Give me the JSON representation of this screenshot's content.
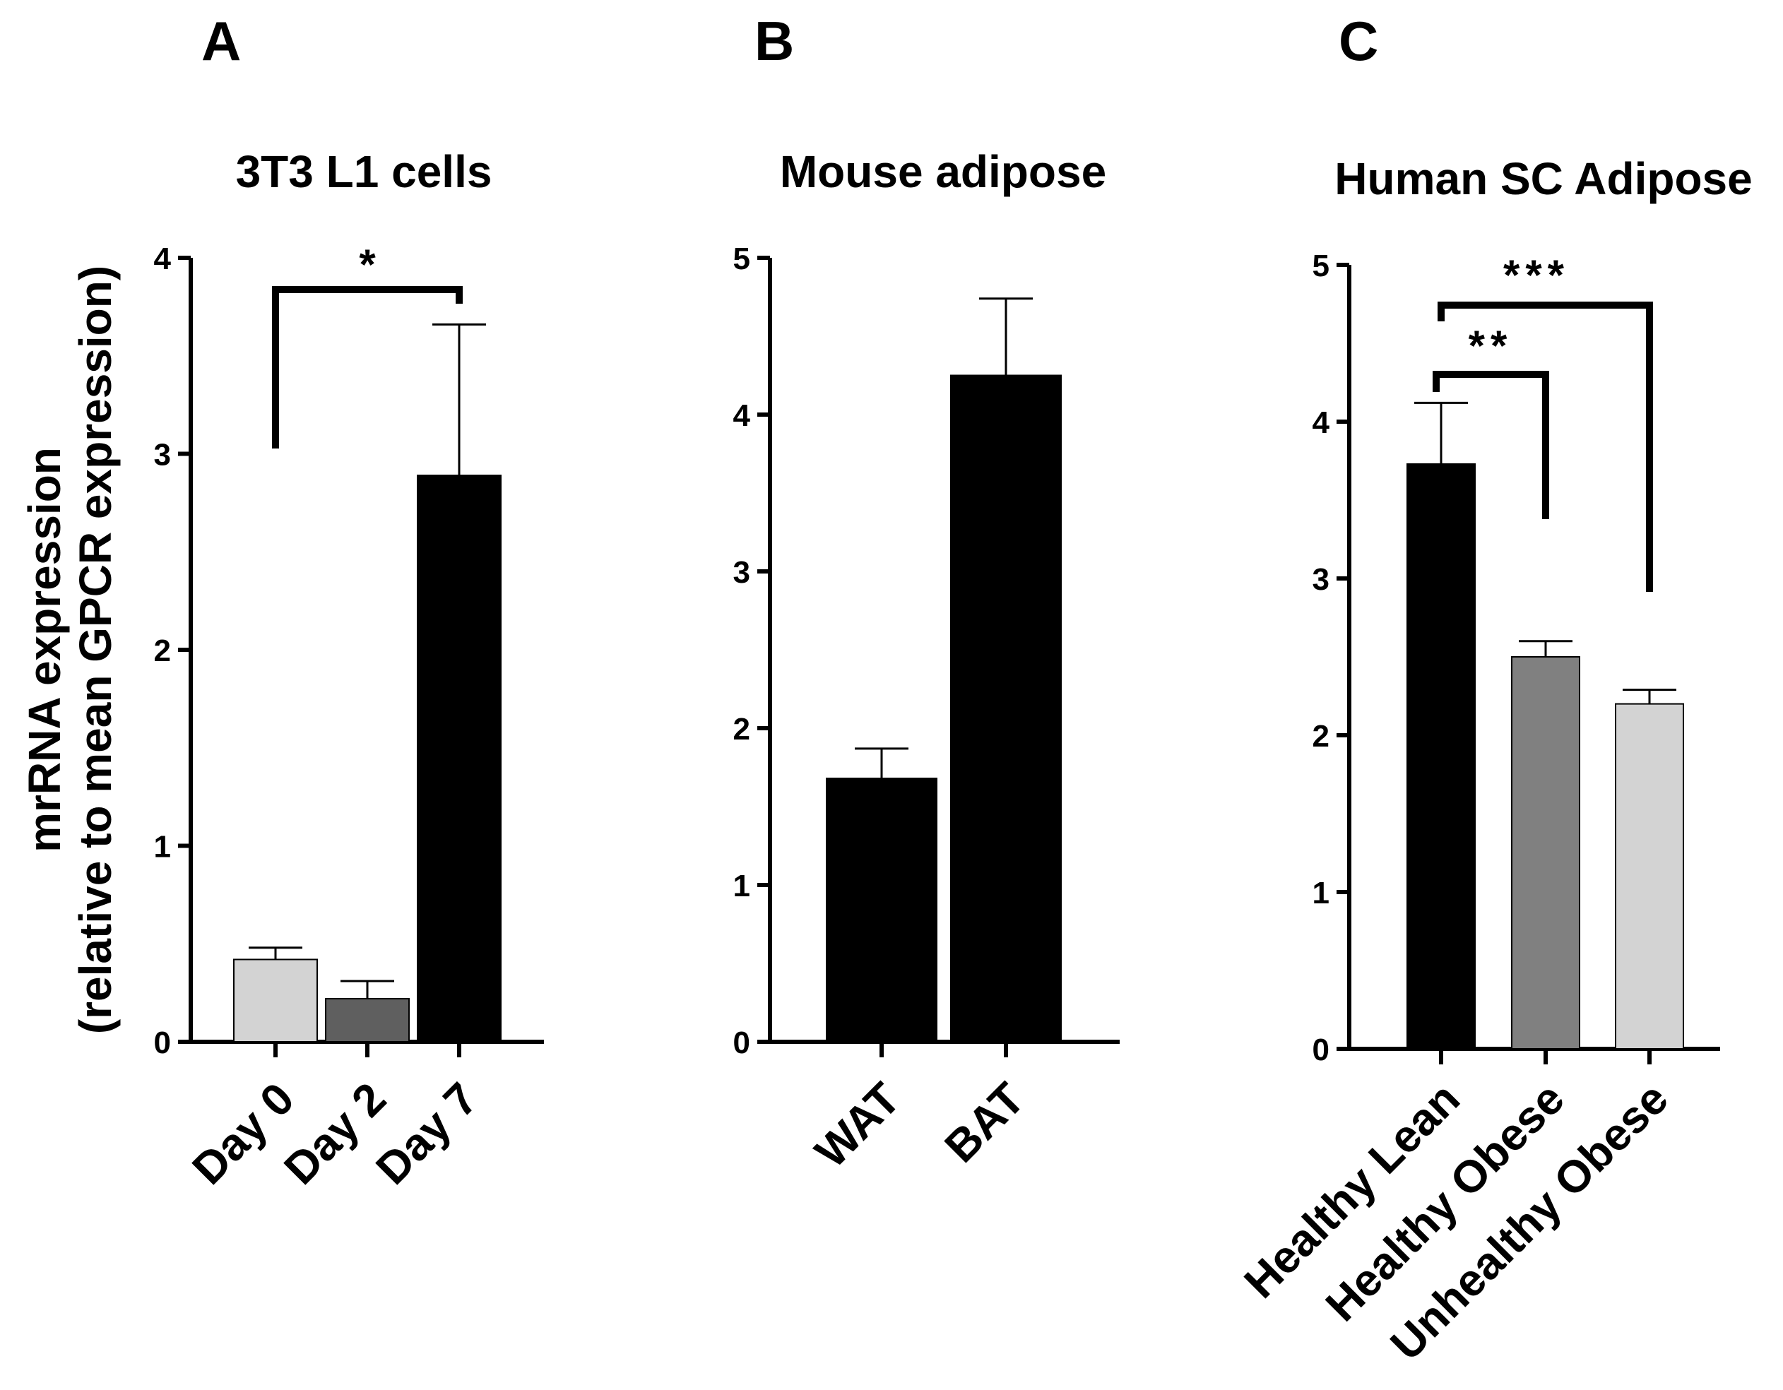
{
  "chart_data": [
    {
      "type": "bar",
      "panel": "A",
      "title": "3T3 L1 cells",
      "ylabel_lines": [
        "mrRNA expression",
        "(relative to mean GPCR expression)"
      ],
      "xlabel": "",
      "categories": [
        "Day 0",
        "Day 2",
        "Day 7"
      ],
      "values": [
        0.42,
        0.22,
        2.89
      ],
      "errors": [
        0.06,
        0.09,
        0.77
      ],
      "colors": [
        "#d3d3d3",
        "#5f5f5f",
        "#000000"
      ],
      "ylim": [
        0,
        4
      ],
      "yticks": [
        "0",
        "1",
        "2",
        "3",
        "4"
      ],
      "significance": [
        {
          "from": 0,
          "to": 2,
          "label": "*"
        }
      ]
    },
    {
      "type": "bar",
      "panel": "B",
      "title": "Mouse adipose",
      "xlabel": "",
      "categories": [
        "WAT",
        "BAT"
      ],
      "values": [
        1.68,
        4.25
      ],
      "errors": [
        0.19,
        0.49
      ],
      "colors": [
        "#000000",
        "#000000"
      ],
      "ylim": [
        0,
        5
      ],
      "yticks": [
        "0",
        "1",
        "2",
        "3",
        "4",
        "5"
      ],
      "significance": []
    },
    {
      "type": "bar",
      "panel": "C",
      "title": "Human SC Adipose",
      "xlabel": "",
      "categories": [
        "Healthy Lean",
        "Healthy Obese",
        "Unhealthy Obese"
      ],
      "values": [
        3.73,
        2.5,
        2.2
      ],
      "errors": [
        0.39,
        0.1,
        0.09
      ],
      "colors": [
        "#000000",
        "#808080",
        "#d3d3d3"
      ],
      "ylim": [
        0,
        5
      ],
      "yticks": [
        "0",
        "1",
        "2",
        "3",
        "4",
        "5"
      ],
      "significance": [
        {
          "from": 0,
          "to": 1,
          "label": "**"
        },
        {
          "from": 0,
          "to": 2,
          "label": "***"
        }
      ]
    }
  ]
}
